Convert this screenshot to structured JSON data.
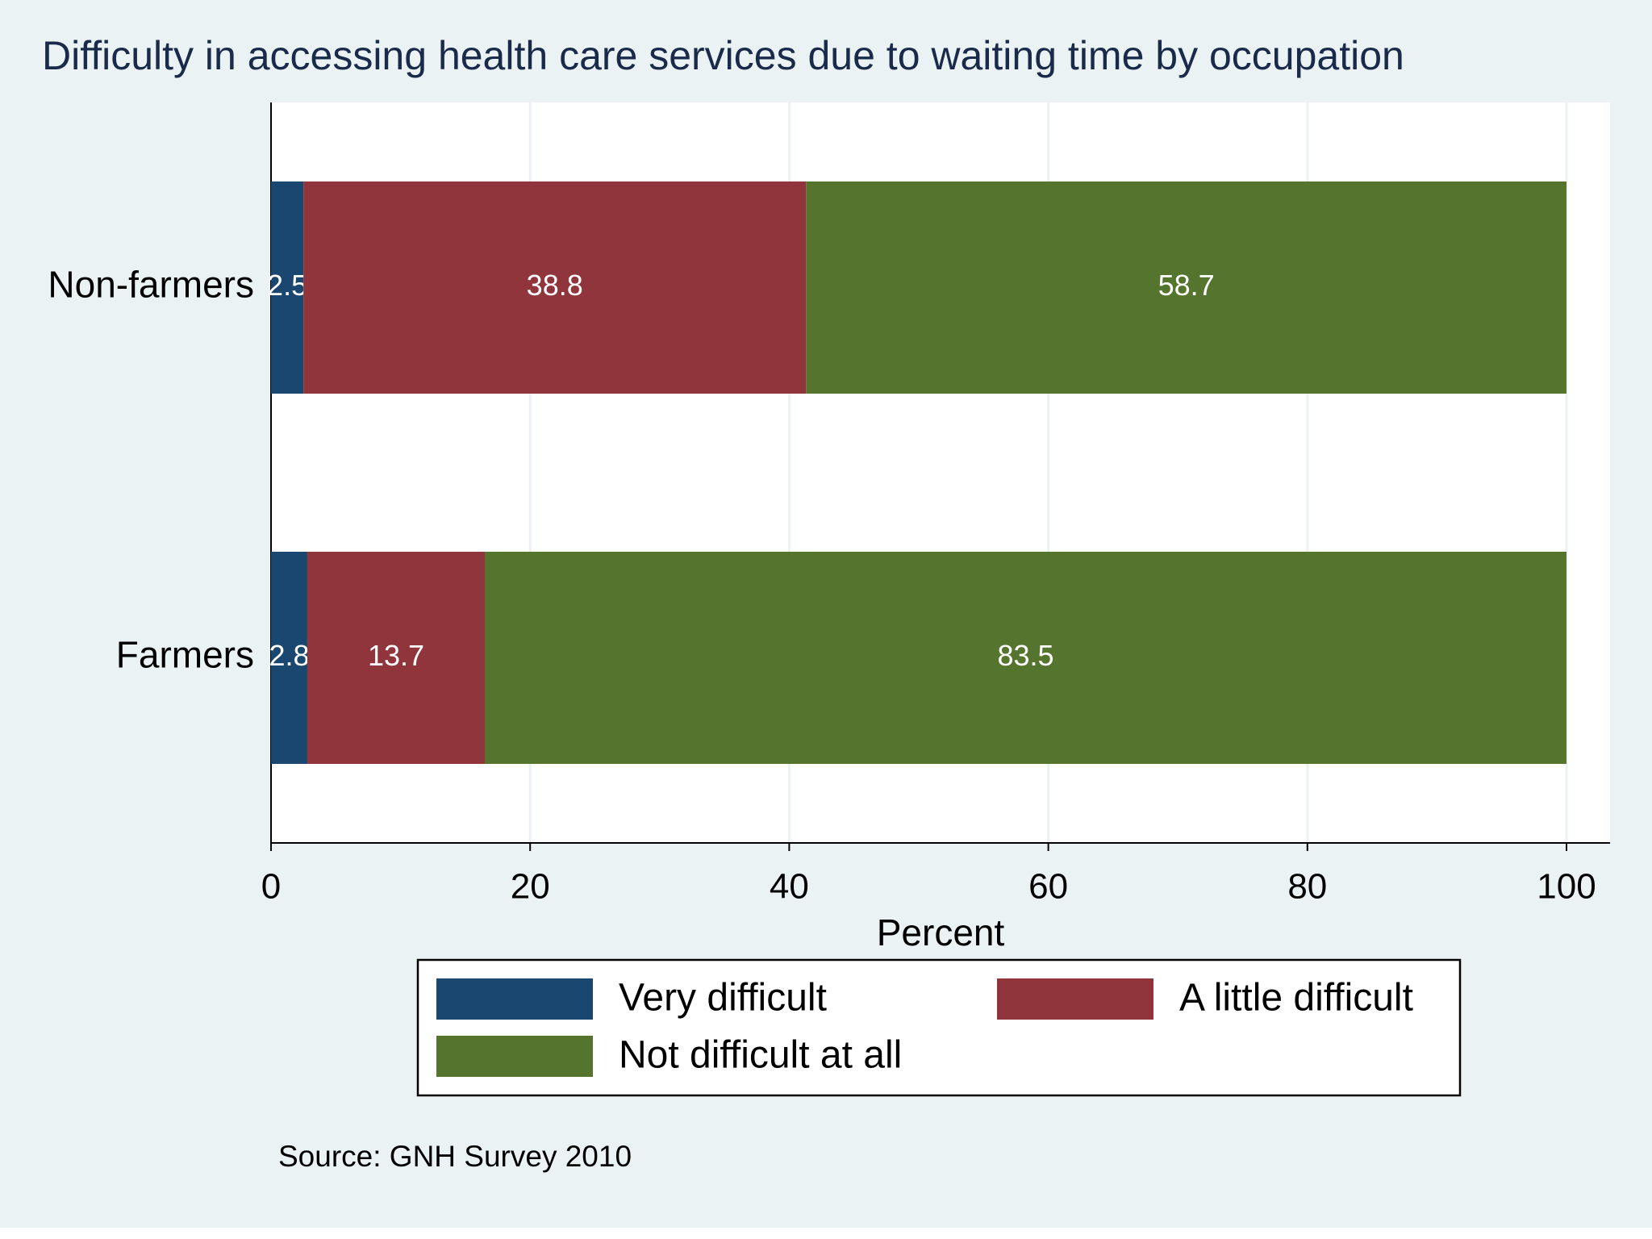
{
  "chart_data": {
    "type": "bar",
    "orientation": "horizontal",
    "stacked": true,
    "title": "Difficulty in accessing health care services due to waiting time by occupation",
    "xlabel": "Percent",
    "note": "Source: GNH Survey 2010",
    "categories": [
      "Non-farmers",
      "Farmers"
    ],
    "series": [
      {
        "name": "Very difficult",
        "color": "#1a476f",
        "values": [
          2.5,
          2.8
        ]
      },
      {
        "name": "A little difficult",
        "color": "#90353b",
        "values": [
          38.8,
          13.7
        ]
      },
      {
        "name": "Not difficult at all",
        "color": "#55752f",
        "values": [
          58.7,
          83.5
        ]
      }
    ],
    "xlim": [
      0,
      100
    ],
    "xticks": [
      0,
      20,
      40,
      60,
      80,
      100
    ],
    "grid": true,
    "legend": "bottom"
  }
}
